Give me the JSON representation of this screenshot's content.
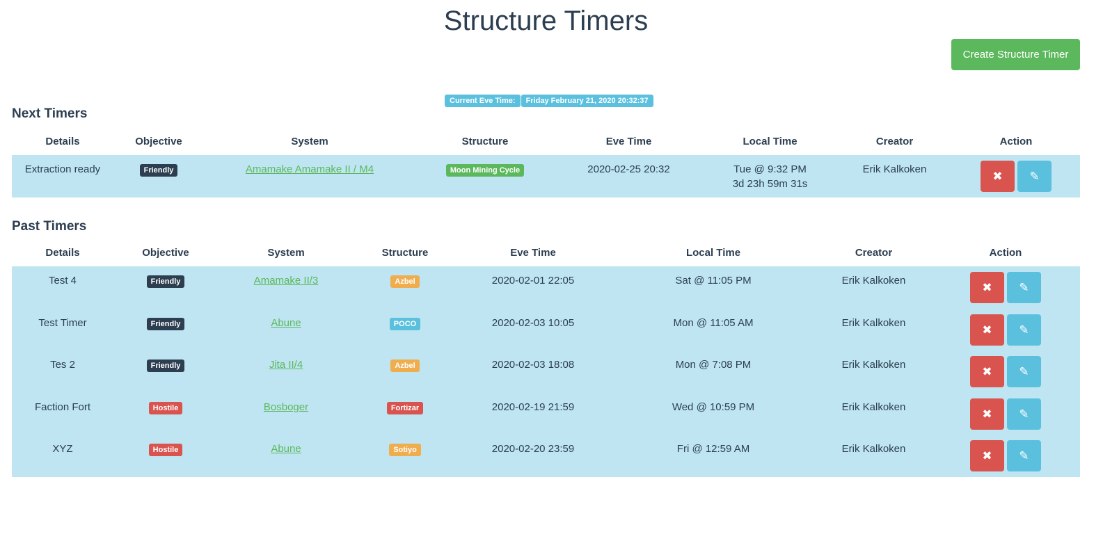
{
  "title": "Structure Timers",
  "create_button": "Create Structure Timer",
  "current_eve_time": {
    "label": "Current Eve Time:",
    "value": "Friday February 21, 2020 20:32:37"
  },
  "colors": {
    "Friendly": "#2c3e50",
    "Hostile": "#d9534f",
    "Moon Mining Cycle": "#5cb85c",
    "Azbel": "#f0ad4e",
    "POCO": "#5bc0de",
    "Fortizar": "#d9534f",
    "Sotiyo": "#f0ad4e"
  },
  "headers": [
    "Details",
    "Objective",
    "System",
    "Structure",
    "Eve Time",
    "Local Time",
    "Creator",
    "Action"
  ],
  "next": {
    "title": "Next Timers",
    "rows": [
      {
        "details": "Extraction ready",
        "objective": "Friendly",
        "system": "Amamake Amamake II / M4",
        "structure": "Moon Mining Cycle",
        "eve_time": "2020-02-25 20:32",
        "local_time": "Tue @ 9:32 PM",
        "countdown": "3d 23h 59m 31s",
        "creator": "Erik Kalkoken"
      }
    ]
  },
  "past": {
    "title": "Past Timers",
    "rows": [
      {
        "details": "Test 4",
        "objective": "Friendly",
        "system": "Amamake II/3",
        "structure": "Azbel",
        "eve_time": "2020-02-01 22:05",
        "local_time": "Sat @ 11:05 PM",
        "creator": "Erik Kalkoken"
      },
      {
        "details": "Test Timer",
        "objective": "Friendly",
        "system": "Abune",
        "structure": "POCO",
        "eve_time": "2020-02-03 10:05",
        "local_time": "Mon @ 11:05 AM",
        "creator": "Erik Kalkoken"
      },
      {
        "details": "Tes 2",
        "objective": "Friendly",
        "system": "Jita II/4",
        "structure": "Azbel",
        "eve_time": "2020-02-03 18:08",
        "local_time": "Mon @ 7:08 PM",
        "creator": "Erik Kalkoken"
      },
      {
        "details": "Faction Fort",
        "objective": "Hostile",
        "system": "Bosboger",
        "structure": "Fortizar",
        "eve_time": "2020-02-19 21:59",
        "local_time": "Wed @ 10:59 PM",
        "creator": "Erik Kalkoken"
      },
      {
        "details": "XYZ",
        "objective": "Hostile",
        "system": "Abune",
        "structure": "Sotiyo",
        "eve_time": "2020-02-20 23:59",
        "local_time": "Fri @ 12:59 AM",
        "creator": "Erik Kalkoken"
      }
    ]
  }
}
